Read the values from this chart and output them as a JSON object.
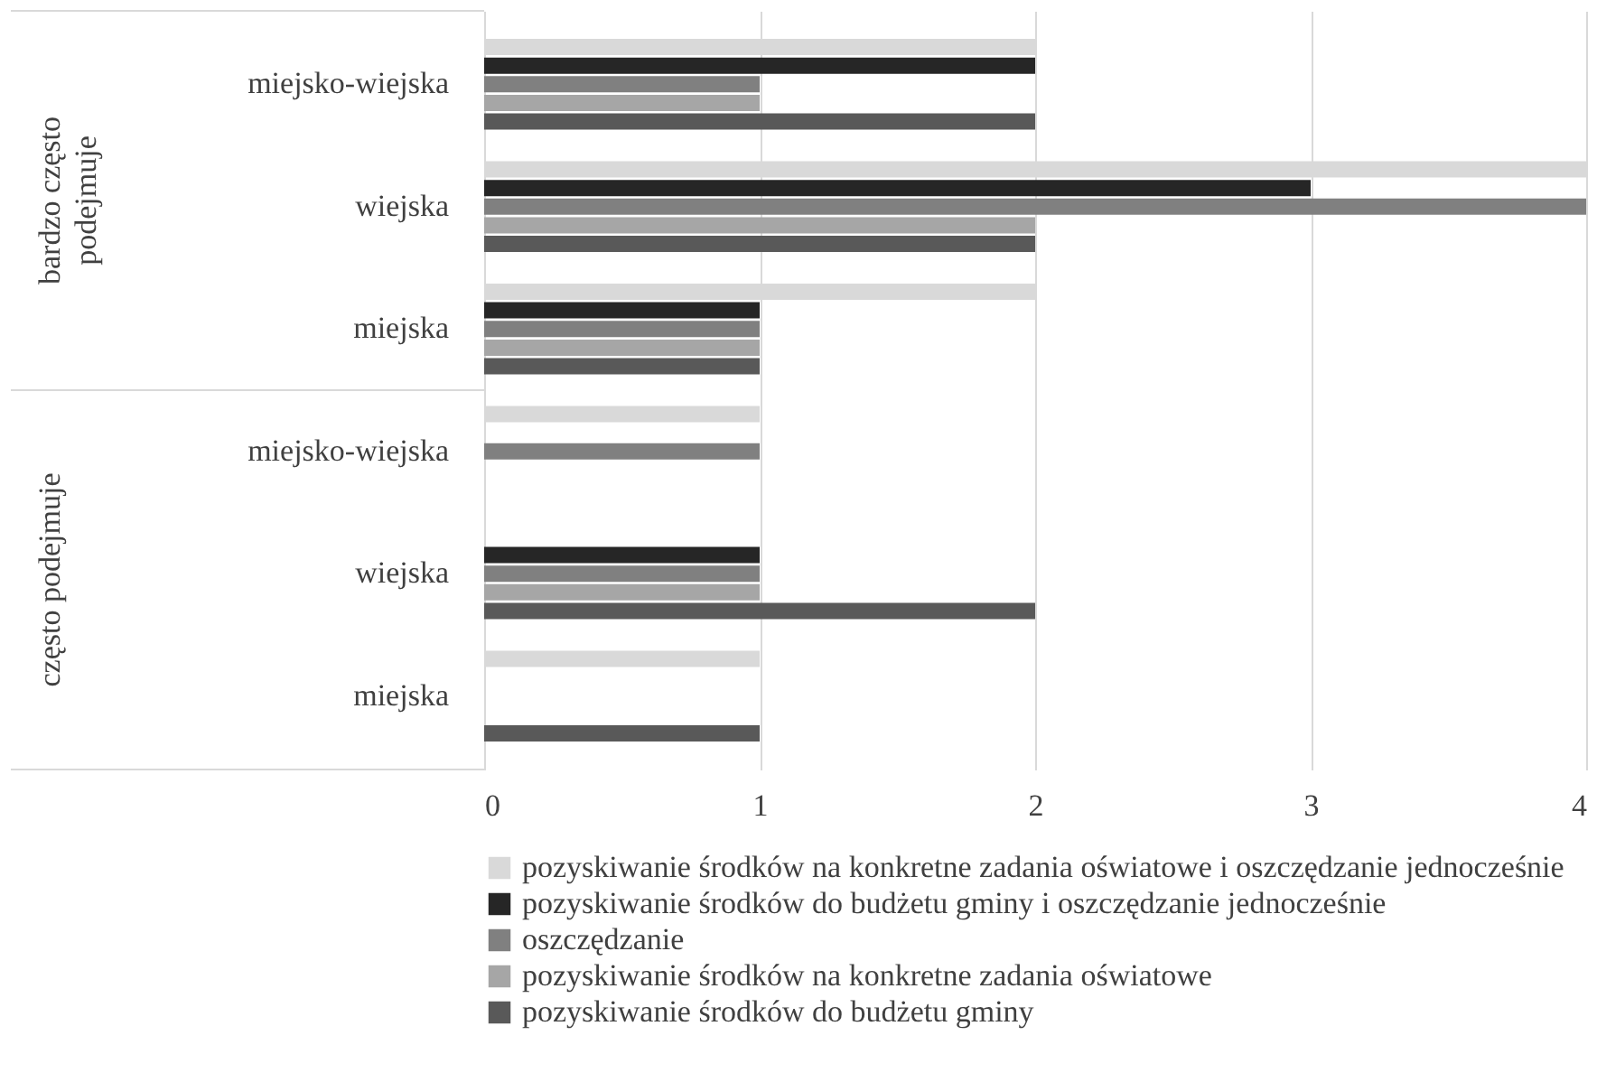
{
  "chart_data": {
    "type": "bar",
    "orientation": "horizontal",
    "categories": [
      "miejsko-wiejska",
      "wiejska",
      "miejska",
      "miejsko-wiejska",
      "wiejska",
      "miejska"
    ],
    "series": [
      {
        "name": "pozyskiwanie środków na konkretne zadania oświatowe i oszczędzanie jednocześnie",
        "color": "#d9d9d9",
        "values": [
          2,
          4,
          2,
          1,
          0,
          1
        ]
      },
      {
        "name": "pozyskiwanie środków do budżetu gminy i oszczędzanie jednocześnie",
        "color": "#262626",
        "values": [
          2,
          3,
          1,
          0,
          1,
          0
        ]
      },
      {
        "name": "oszczędzanie",
        "color": "#808080",
        "values": [
          1,
          4,
          1,
          1,
          1,
          0
        ]
      },
      {
        "name": "pozyskiwanie środków na konkretne zadania oświatowe",
        "color": "#a6a6a6",
        "values": [
          1,
          2,
          1,
          0,
          1,
          0
        ]
      },
      {
        "name": "pozyskiwanie środków do budżetu gminy",
        "color": "#595959",
        "values": [
          2,
          2,
          1,
          0,
          2,
          1
        ]
      }
    ],
    "annotations": [
      "bardzo często podejmuje",
      "często podejmuje"
    ],
    "xlim": [
      0,
      4
    ],
    "xticks": [
      0,
      1,
      2,
      3,
      4
    ],
    "grid": "x",
    "legend": "bottom"
  }
}
